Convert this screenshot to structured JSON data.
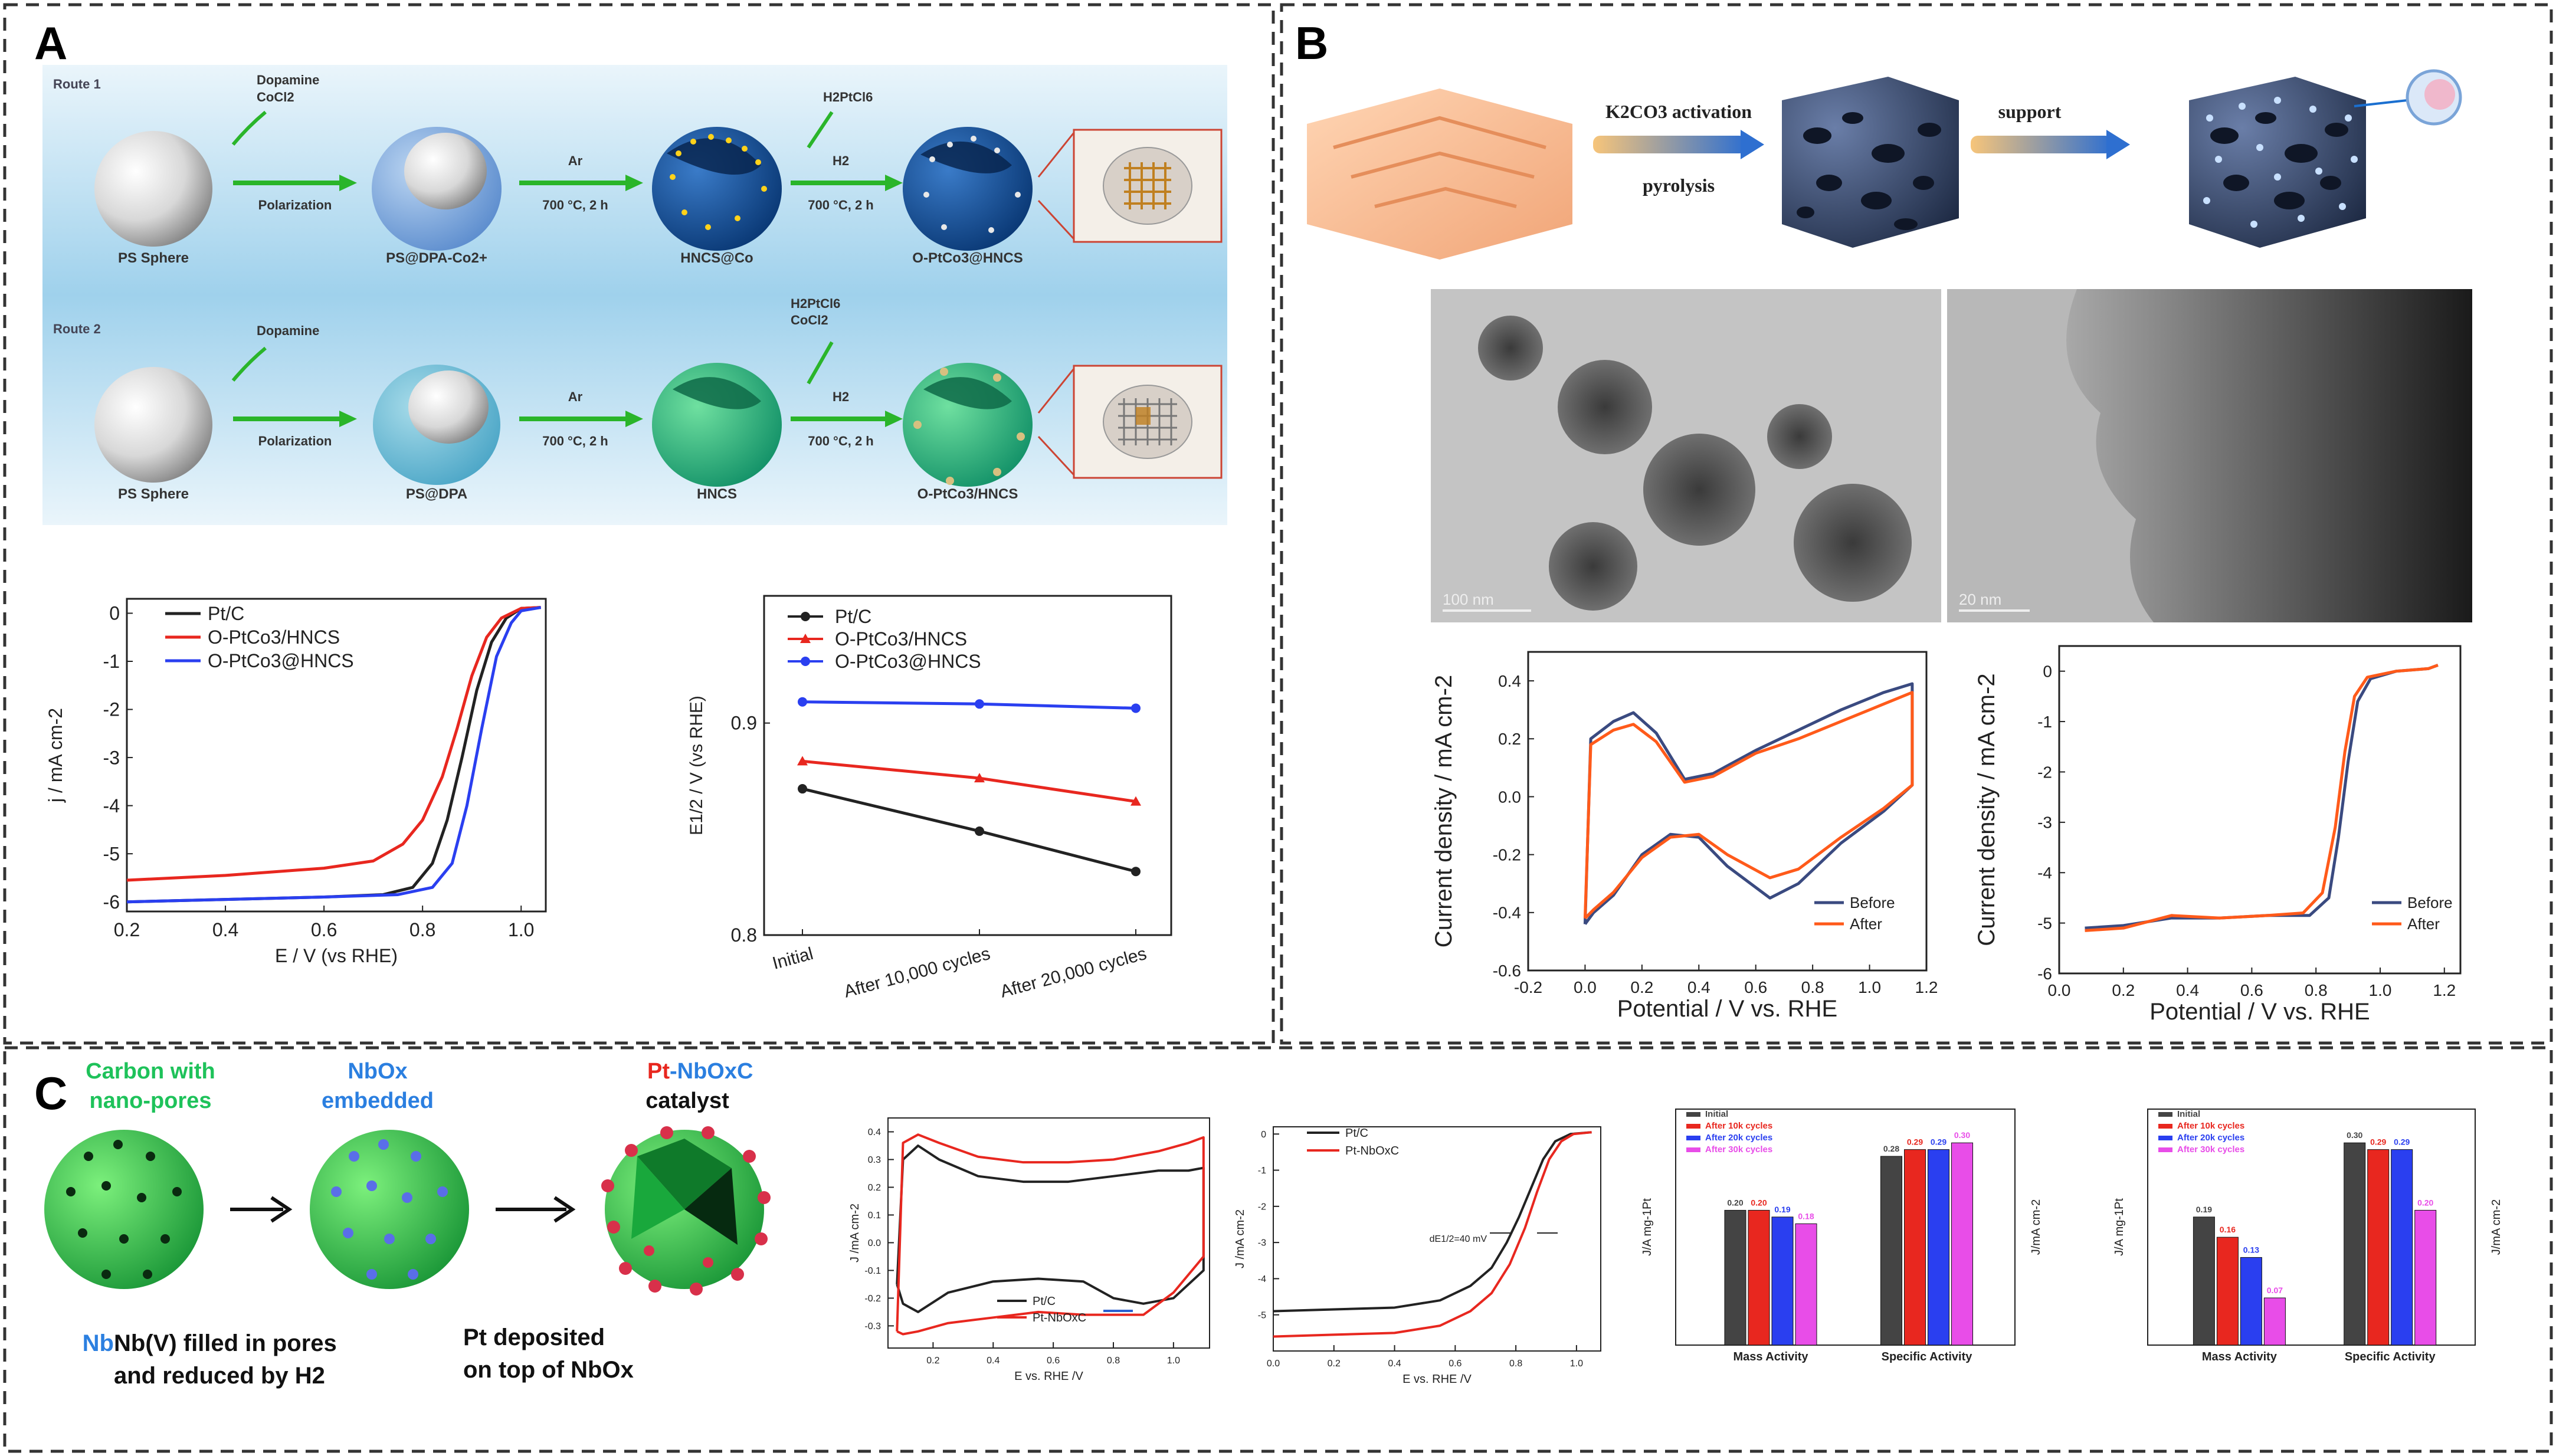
{
  "panels": {
    "a_label": "A",
    "b_label": "B",
    "c_label": "C"
  },
  "schemeA": {
    "route1": "Route 1",
    "route2": "Route 2",
    "r1_dopamine": "Dopamine",
    "r1_cocl2": "CoCl2",
    "r2_dopamine": "Dopamine",
    "polarization1": "Polarization",
    "polarization2": "Polarization",
    "ar1": "Ar",
    "ar2": "Ar",
    "temp1": "700 °C, 2 h",
    "temp2": "700 °C, 2 h",
    "temp3": "700 °C, 2 h",
    "temp4": "700 °C, 2 h",
    "h2ptcl6_1": "H2PtCl6",
    "h2ptcl6_2": "H2PtCl6",
    "cocl2_2": "CoCl2",
    "h2_1": "H2",
    "h2_2": "H2",
    "ps1": "PS Sphere",
    "ps2": "PS Sphere",
    "psdpa_co": "PS@DPA-Co2+",
    "hncs_co": "HNCS@Co",
    "optco_at": "O-PtCo3@HNCS",
    "psdpa": "PS@DPA",
    "hncs": "HNCS",
    "optco_slash": "O-PtCo3/HNCS"
  },
  "schemeB": {
    "activation": "K2CO3 activation",
    "pyrolysis": "pyrolysis",
    "support": "support",
    "scale1": "100 nm",
    "scale2": "20 nm"
  },
  "schemeC": {
    "s1_line1": "Carbon with",
    "s1_line2": "nano-pores",
    "s2_line1": "NbOx",
    "s2_line2": "embedded",
    "s3_pt": "Pt",
    "s3_rest": "-NbOxC",
    "s3_line2": "catalyst",
    "cap1_line1": "Nb(V) filled in pores",
    "cap1_line2": "and reduced by H2",
    "cap2_line1": "Pt deposited",
    "cap2_line2": "on top of NbOx"
  },
  "colors": {
    "ptc": "#222222",
    "red": "#e8271f",
    "blue": "#2a3ff0",
    "orange": "#ff5a1a",
    "navy": "#3a4a80",
    "green": "#1ec25a",
    "nbblue": "#2b7fe0",
    "magenta": "#e84de8",
    "gray": "#666666"
  },
  "chart_data": [
    {
      "id": "A-lsv",
      "type": "line",
      "xlabel": "E / V (vs RHE)",
      "ylabel": "j / mA cm-2",
      "xlim": [
        0.2,
        1.05
      ],
      "ylim": [
        -6.2,
        0.3
      ],
      "xticks": [
        "0.2",
        "0.4",
        "0.6",
        "0.8",
        "1.0"
      ],
      "yticks": [
        "0",
        "-1",
        "-2",
        "-3",
        "-4",
        "-5",
        "-6"
      ],
      "series": [
        {
          "name": "Pt/C",
          "x": [
            0.2,
            0.4,
            0.6,
            0.72,
            0.78,
            0.82,
            0.85,
            0.88,
            0.91,
            0.94,
            0.97,
            1.0,
            1.04
          ],
          "y": [
            -6.0,
            -5.95,
            -5.9,
            -5.85,
            -5.7,
            -5.2,
            -4.3,
            -3.0,
            -1.6,
            -0.6,
            -0.1,
            0.1,
            0.12
          ]
        },
        {
          "name": "O-PtCo3/HNCS",
          "x": [
            0.2,
            0.4,
            0.6,
            0.7,
            0.76,
            0.8,
            0.84,
            0.87,
            0.9,
            0.93,
            0.96,
            1.0,
            1.04
          ],
          "y": [
            -5.55,
            -5.45,
            -5.3,
            -5.15,
            -4.8,
            -4.3,
            -3.4,
            -2.4,
            -1.3,
            -0.5,
            -0.1,
            0.1,
            0.12
          ]
        },
        {
          "name": "O-PtCo3@HNCS",
          "x": [
            0.2,
            0.4,
            0.6,
            0.75,
            0.82,
            0.86,
            0.89,
            0.92,
            0.95,
            0.98,
            1.0,
            1.04
          ],
          "y": [
            -6.0,
            -5.95,
            -5.9,
            -5.85,
            -5.7,
            -5.2,
            -4.0,
            -2.4,
            -0.9,
            -0.2,
            0.05,
            0.12
          ]
        }
      ]
    },
    {
      "id": "A-halfwave",
      "type": "line",
      "ylabel": "E1/2 / V (vs RHE)",
      "categories": [
        "Initial",
        "After 10,000 cycles",
        "After 20,000 cycles"
      ],
      "ylim": [
        0.8,
        0.96
      ],
      "yticks": [
        "0.8",
        "0.9"
      ],
      "series": [
        {
          "name": "Pt/C",
          "values": [
            0.869,
            0.849,
            0.83
          ]
        },
        {
          "name": "O-PtCo3/HNCS",
          "values": [
            0.882,
            0.874,
            0.863
          ]
        },
        {
          "name": "O-PtCo3@HNCS",
          "values": [
            0.91,
            0.909,
            0.907
          ]
        }
      ]
    },
    {
      "id": "B-cv",
      "type": "line",
      "xlabel": "Potential / V  vs. RHE",
      "ylabel": "Current density / mA cm-2",
      "xlim": [
        -0.2,
        1.2
      ],
      "ylim": [
        -0.6,
        0.5
      ],
      "xticks": [
        "-0.2",
        "0.0",
        "0.2",
        "0.4",
        "0.6",
        "0.8",
        "1.0",
        "1.2"
      ],
      "yticks": [
        "0.4",
        "0.2",
        "0.0",
        "-0.2",
        "-0.4",
        "-0.6"
      ],
      "legend": [
        "Before",
        "After"
      ],
      "series": [
        {
          "name": "Before",
          "x": [
            0.0,
            0.02,
            0.1,
            0.17,
            0.25,
            0.35,
            0.45,
            0.6,
            0.75,
            0.9,
            1.05,
            1.15,
            1.15,
            1.05,
            0.9,
            0.75,
            0.65,
            0.5,
            0.4,
            0.3,
            0.2,
            0.1,
            0.03,
            0.0
          ],
          "y": [
            -0.44,
            0.2,
            0.26,
            0.29,
            0.22,
            0.06,
            0.08,
            0.16,
            0.23,
            0.3,
            0.36,
            0.39,
            0.04,
            -0.05,
            -0.16,
            -0.3,
            -0.35,
            -0.24,
            -0.14,
            -0.13,
            -0.2,
            -0.34,
            -0.4,
            -0.44
          ]
        },
        {
          "name": "After",
          "x": [
            0.0,
            0.02,
            0.1,
            0.17,
            0.25,
            0.35,
            0.45,
            0.6,
            0.75,
            0.9,
            1.05,
            1.15,
            1.15,
            1.05,
            0.9,
            0.75,
            0.65,
            0.5,
            0.4,
            0.3,
            0.2,
            0.1,
            0.03,
            0.0
          ],
          "y": [
            -0.42,
            0.18,
            0.23,
            0.25,
            0.19,
            0.05,
            0.07,
            0.15,
            0.2,
            0.26,
            0.32,
            0.36,
            0.04,
            -0.04,
            -0.14,
            -0.25,
            -0.28,
            -0.2,
            -0.13,
            -0.14,
            -0.21,
            -0.33,
            -0.39,
            -0.42
          ]
        }
      ]
    },
    {
      "id": "B-lsv",
      "type": "line",
      "xlabel": "Potential / V  vs. RHE",
      "ylabel": "Current density / mA cm-2",
      "xlim": [
        0,
        1.25
      ],
      "ylim": [
        -6,
        0.5
      ],
      "xticks": [
        "0.0",
        "0.2",
        "0.4",
        "0.6",
        "0.8",
        "1.0",
        "1.2"
      ],
      "yticks": [
        "0",
        "-1",
        "-2",
        "-3",
        "-4",
        "-5",
        "-6"
      ],
      "legend": [
        "Before",
        "After"
      ],
      "series": [
        {
          "name": "Before",
          "x": [
            0.08,
            0.2,
            0.35,
            0.5,
            0.65,
            0.78,
            0.84,
            0.87,
            0.9,
            0.93,
            0.97,
            1.05,
            1.15,
            1.18
          ],
          "y": [
            -5.1,
            -5.05,
            -4.9,
            -4.9,
            -4.85,
            -4.85,
            -4.5,
            -3.3,
            -1.8,
            -0.6,
            -0.15,
            0.0,
            0.05,
            0.12
          ]
        },
        {
          "name": "After",
          "x": [
            0.08,
            0.2,
            0.35,
            0.5,
            0.65,
            0.76,
            0.82,
            0.86,
            0.89,
            0.92,
            0.96,
            1.05,
            1.15,
            1.18
          ],
          "y": [
            -5.15,
            -5.1,
            -4.85,
            -4.9,
            -4.85,
            -4.8,
            -4.4,
            -3.1,
            -1.6,
            -0.5,
            -0.12,
            0.0,
            0.05,
            0.12
          ]
        }
      ]
    },
    {
      "id": "C-cv",
      "type": "line",
      "xlabel": "E vs. RHE /V",
      "ylabel": "J /mA cm-2",
      "xticks": [
        "0.2",
        "0.4",
        "0.6",
        "0.8",
        "1.0"
      ],
      "yticks": [
        "0.4",
        "0.3",
        "0.2",
        "0.1",
        "0.0",
        "-0.1",
        "-0.2",
        "-0.3"
      ],
      "legend": [
        "Pt/C",
        "Pt-NbOxC"
      ],
      "series": [
        {
          "name": "Pt/C",
          "x": [
            0.08,
            0.1,
            0.15,
            0.22,
            0.35,
            0.5,
            0.65,
            0.8,
            0.95,
            1.05,
            1.1,
            1.1,
            1.0,
            0.9,
            0.8,
            0.7,
            0.55,
            0.4,
            0.25,
            0.15,
            0.1,
            0.08
          ],
          "y": [
            -0.15,
            0.3,
            0.35,
            0.3,
            0.24,
            0.22,
            0.22,
            0.24,
            0.26,
            0.26,
            0.27,
            -0.1,
            -0.2,
            -0.22,
            -0.2,
            -0.14,
            -0.13,
            -0.14,
            -0.18,
            -0.25,
            -0.22,
            -0.15
          ]
        },
        {
          "name": "Pt-NbOxC",
          "x": [
            0.08,
            0.1,
            0.15,
            0.22,
            0.35,
            0.5,
            0.65,
            0.8,
            0.95,
            1.05,
            1.1,
            1.1,
            1.0,
            0.9,
            0.8,
            0.7,
            0.55,
            0.4,
            0.25,
            0.15,
            0.1,
            0.08
          ],
          "y": [
            -0.32,
            0.36,
            0.39,
            0.36,
            0.31,
            0.29,
            0.29,
            0.3,
            0.33,
            0.36,
            0.38,
            -0.05,
            -0.18,
            -0.26,
            -0.26,
            -0.26,
            -0.25,
            -0.27,
            -0.29,
            -0.32,
            -0.33,
            -0.32
          ]
        }
      ]
    },
    {
      "id": "C-lsv",
      "type": "line",
      "xlabel": "E vs. RHE /V",
      "ylabel": "J /mA cm-2",
      "xticks": [
        "0.0",
        "0.2",
        "0.4",
        "0.6",
        "0.8",
        "1.0"
      ],
      "yticks": [
        "0",
        "-1",
        "-2",
        "-3",
        "-4",
        "-5"
      ],
      "legend": [
        "Pt/C",
        "Pt-NbOxC"
      ],
      "annotation": "dE1/2=40 mV",
      "series": [
        {
          "name": "Pt/C",
          "x": [
            0.0,
            0.2,
            0.4,
            0.55,
            0.65,
            0.72,
            0.77,
            0.81,
            0.85,
            0.89,
            0.93,
            0.98,
            1.05
          ],
          "y": [
            -4.9,
            -4.85,
            -4.8,
            -4.6,
            -4.2,
            -3.7,
            -3.0,
            -2.3,
            -1.5,
            -0.7,
            -0.2,
            0.0,
            0.05
          ]
        },
        {
          "name": "Pt-NbOxC",
          "x": [
            0.0,
            0.2,
            0.4,
            0.55,
            0.65,
            0.72,
            0.78,
            0.83,
            0.87,
            0.91,
            0.95,
            0.99,
            1.05
          ],
          "y": [
            -5.6,
            -5.55,
            -5.5,
            -5.3,
            -4.9,
            -4.4,
            -3.6,
            -2.6,
            -1.6,
            -0.7,
            -0.2,
            0.0,
            0.05
          ]
        }
      ]
    },
    {
      "id": "C-bar1",
      "type": "bar",
      "categories": [
        "Mass Activity",
        "Specific Activity"
      ],
      "ylabel": "J/A mg-1Pt",
      "ylabel_right": "J/mA cm-2",
      "legend": [
        "Initial",
        "After 10k cycles",
        "After 20k cycles",
        "After 30k cycles"
      ],
      "series": [
        {
          "name": "Initial",
          "values": [
            0.2,
            0.28
          ]
        },
        {
          "name": "After 10k cycles",
          "values": [
            0.2,
            0.29
          ]
        },
        {
          "name": "After 20k cycles",
          "values": [
            0.19,
            0.29
          ]
        },
        {
          "name": "After 30k cycles",
          "values": [
            0.18,
            0.3
          ]
        }
      ],
      "data_labels": [
        [
          "0.20",
          "0.28"
        ],
        [
          "0.20",
          "0.29"
        ],
        [
          "0.19",
          "0.29"
        ],
        [
          "0.18",
          "0.30"
        ]
      ]
    },
    {
      "id": "C-bar2",
      "type": "bar",
      "categories": [
        "Mass Activity",
        "Specific Activity"
      ],
      "ylabel": "J/A mg-1Pt",
      "ylabel_right": "J/mA cm-2",
      "legend": [
        "Initial",
        "After 10k cycles",
        "After 20k cycles",
        "After 30k cycles"
      ],
      "series": [
        {
          "name": "Initial",
          "values": [
            0.19,
            0.3
          ]
        },
        {
          "name": "After 10k cycles",
          "values": [
            0.16,
            0.29
          ]
        },
        {
          "name": "After 20k cycles",
          "values": [
            0.13,
            0.29
          ]
        },
        {
          "name": "After 30k cycles",
          "values": [
            0.07,
            0.2
          ]
        }
      ],
      "data_labels": [
        [
          "0.19",
          "0.30"
        ],
        [
          "0.16",
          "0.29"
        ],
        [
          "0.13",
          "0.29"
        ],
        [
          "0.07",
          "0.20"
        ]
      ]
    }
  ]
}
